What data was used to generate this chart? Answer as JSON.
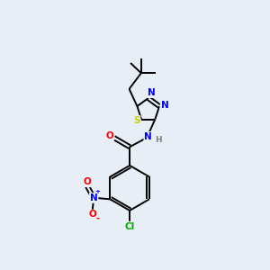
{
  "bg_color": "#e8eef5",
  "bond_color": "#000000",
  "atom_colors": {
    "S": "#cccc00",
    "N": "#0000ff",
    "O": "#ff0000",
    "Cl": "#00aa00",
    "C": "#000000",
    "H": "#808080"
  },
  "lw": 1.4
}
